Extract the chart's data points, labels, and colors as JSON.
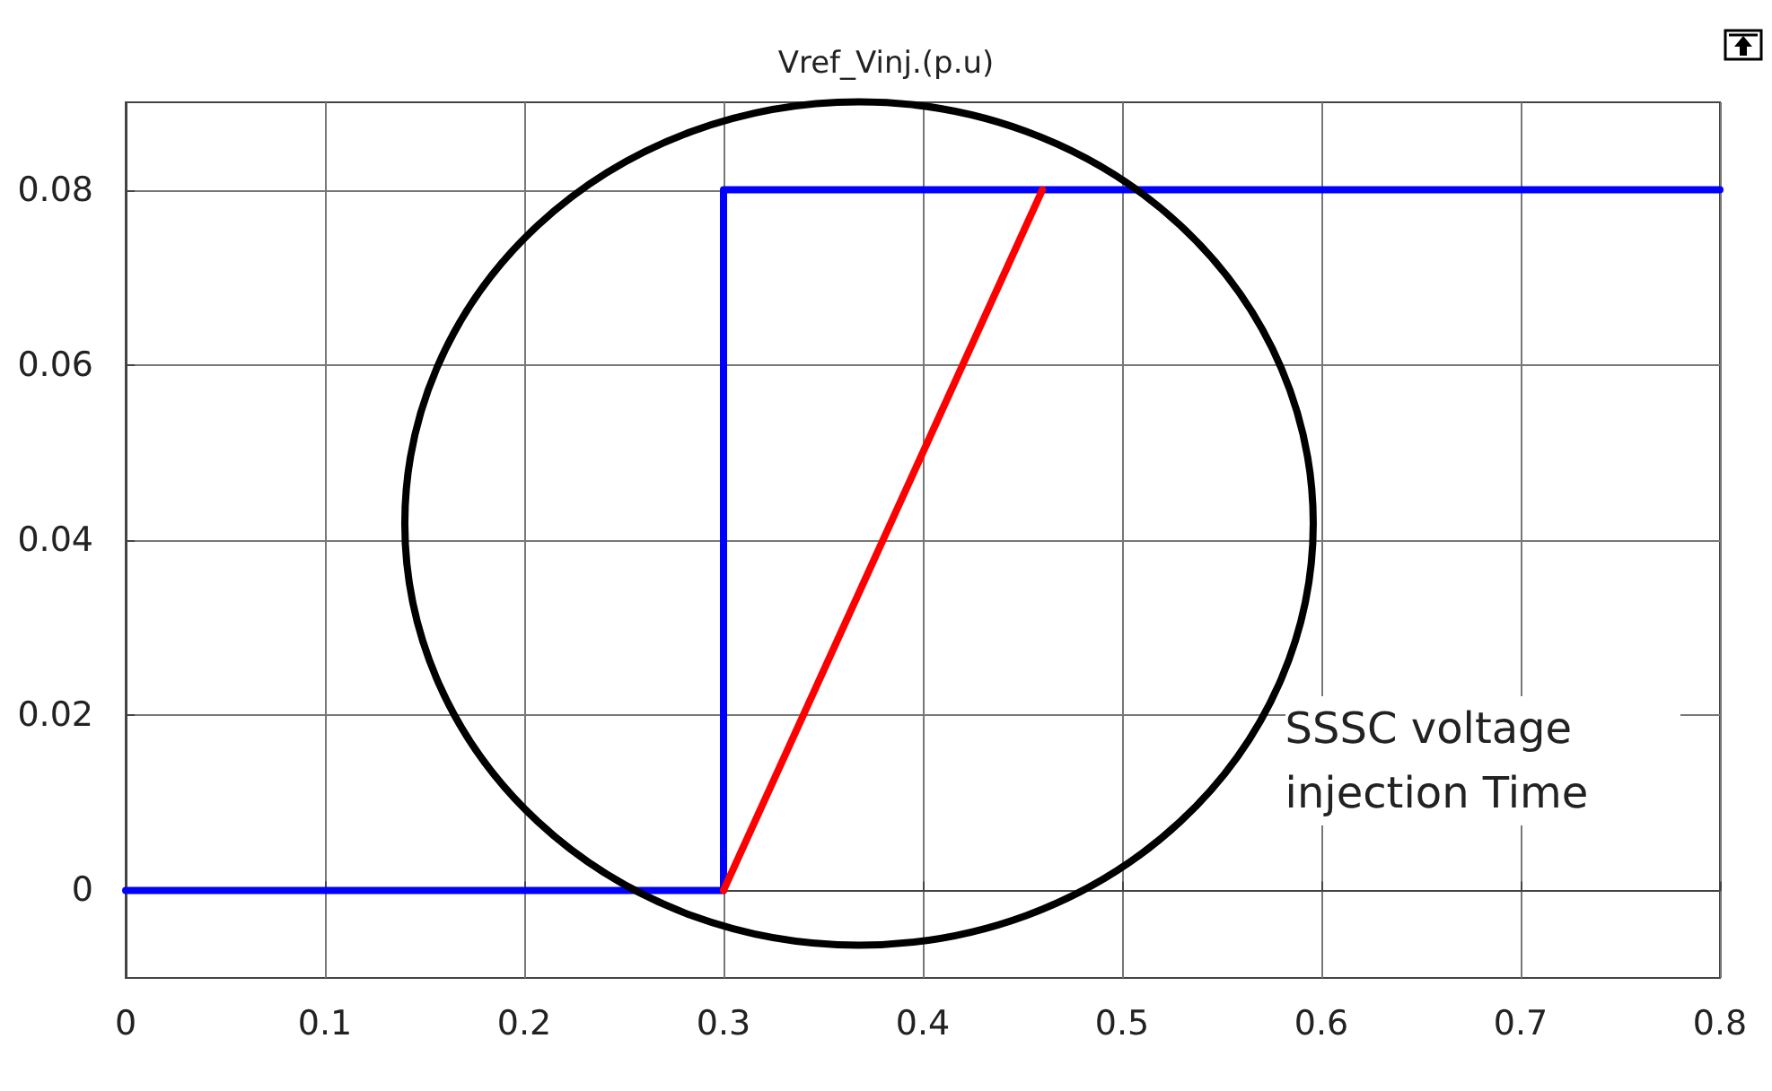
{
  "chart_data": {
    "type": "line",
    "title": "Vref_Vinj.(p.u)",
    "series": [
      {
        "type": "step",
        "color": "#0000ff",
        "x": [
          0,
          0.3,
          0.8
        ],
        "values": [
          0,
          0.08,
          0.08
        ]
      },
      {
        "type": "line",
        "color": "#ff0000",
        "x": [
          0.3,
          0.46
        ],
        "values": [
          0,
          0.08
        ]
      }
    ],
    "xlim": [
      0,
      0.8
    ],
    "xticks": [
      0,
      0.1,
      0.2,
      0.3,
      0.4,
      0.5,
      0.6,
      0.7,
      0.8
    ],
    "ylim": [
      -0.01,
      0.09
    ],
    "yticks": [
      0,
      0.02,
      0.04,
      0.06,
      0.08
    ],
    "grid": true,
    "marker": "none",
    "line_style": "solid",
    "annotations": [
      "SSSC voltage injection Time"
    ]
  }
}
